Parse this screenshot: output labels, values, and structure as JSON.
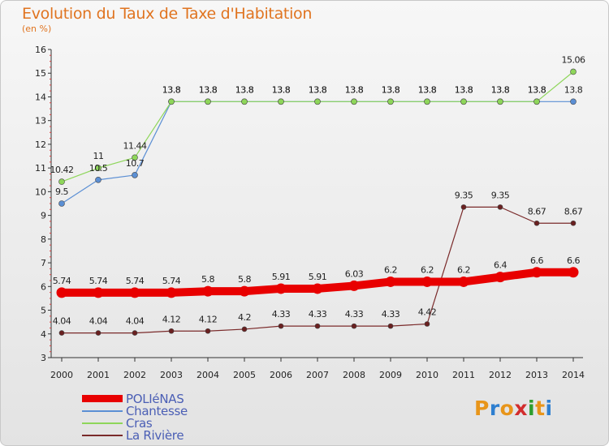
{
  "header": {
    "title": "Evolution du Taux de Taxe d'Habitation",
    "subtitle": "(en %)"
  },
  "logo": {
    "text": "Proxiti",
    "colors": [
      "#e8951a",
      "#2e7fd0",
      "#e8951a",
      "#d22d2d",
      "#2e9e2e",
      "#e8951a",
      "#2e7fd0"
    ]
  },
  "chart_data": {
    "type": "line",
    "x": [
      "2000",
      "2001",
      "2002",
      "2003",
      "2004",
      "2005",
      "2006",
      "2007",
      "2008",
      "2009",
      "2010",
      "2011",
      "2012",
      "2013",
      "2014"
    ],
    "ylim": [
      3,
      16
    ],
    "yticks": [
      3,
      4,
      5,
      6,
      7,
      8,
      9,
      10,
      11,
      12,
      13,
      14,
      15,
      16
    ],
    "grid": false,
    "legend_position": "bottom-left",
    "series": [
      {
        "name": "POLIéNAS",
        "color": "#e80000",
        "width": 10,
        "marker_radius": 6.5,
        "values": [
          5.74,
          5.74,
          5.74,
          5.74,
          5.8,
          5.8,
          5.91,
          5.91,
          6.03,
          6.2,
          6.2,
          6.2,
          6.4,
          6.6,
          6.6
        ],
        "labels": [
          "5.74",
          "5.74",
          "5.74",
          "5.74",
          "5.8",
          "5.8",
          "5.91",
          "5.91",
          "6.03",
          "6.2",
          "6.2",
          "6.2",
          "6.4",
          "6.6",
          "6.6"
        ]
      },
      {
        "name": "Chantesse",
        "color": "#5b8fd4",
        "width": 1.2,
        "marker_radius": 3.5,
        "values": [
          9.5,
          10.5,
          10.7,
          13.8,
          13.8,
          13.8,
          13.8,
          13.8,
          13.8,
          13.8,
          13.8,
          13.8,
          13.8,
          13.8,
          13.8
        ],
        "labels": [
          "9.5",
          "10.5",
          "10.7",
          "13.8",
          "13.8",
          "13.8",
          "13.8",
          "13.8",
          "13.8",
          "13.8",
          "13.8",
          "13.8",
          "13.8",
          "13.8",
          "13.8"
        ]
      },
      {
        "name": "Cras",
        "color": "#8ed65a",
        "width": 1.2,
        "marker_radius": 3.5,
        "values": [
          10.42,
          11,
          11.44,
          13.8,
          13.8,
          13.8,
          13.8,
          13.8,
          13.8,
          13.8,
          13.8,
          13.8,
          13.8,
          13.8,
          15.06
        ],
        "labels": [
          "10.42",
          "11",
          "11.44",
          "13.8",
          "13.8",
          "13.8",
          "13.8",
          "13.8",
          "13.8",
          "13.8",
          "13.8",
          "13.8",
          "13.8",
          "13.8",
          "15.06"
        ]
      },
      {
        "name": "La Rivière",
        "color": "#7a2a2a",
        "width": 1.2,
        "marker_radius": 3,
        "values": [
          4.04,
          4.04,
          4.04,
          4.12,
          4.12,
          4.2,
          4.33,
          4.33,
          4.33,
          4.33,
          4.42,
          9.35,
          9.35,
          8.67,
          8.67
        ],
        "labels": [
          "4.04",
          "4.04",
          "4.04",
          "4.12",
          "4.12",
          "4.2",
          "4.33",
          "4.33",
          "4.33",
          "4.33",
          "4.42",
          "9.35",
          "9.35",
          "8.67",
          "8.67"
        ]
      }
    ]
  }
}
